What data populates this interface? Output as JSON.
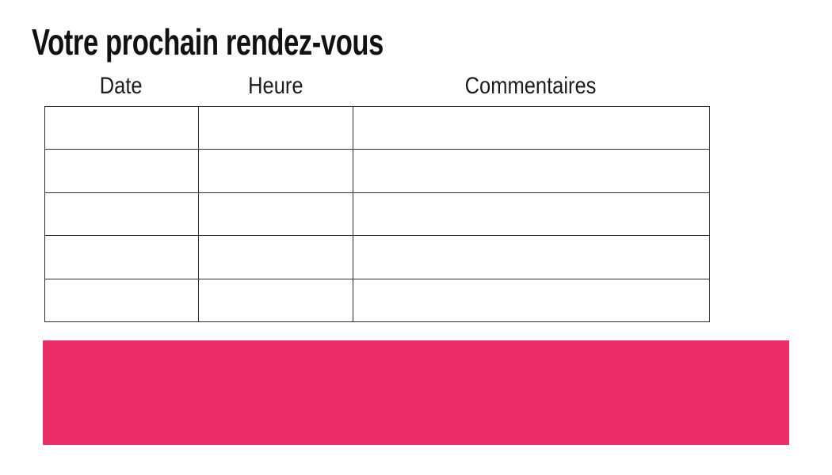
{
  "title": "Votre prochain rendez-vous",
  "table": {
    "columns": [
      "Date",
      "Heure",
      "Commentaires"
    ],
    "rows": [
      [
        "",
        "",
        ""
      ],
      [
        "",
        "",
        ""
      ],
      [
        "",
        "",
        ""
      ],
      [
        "",
        "",
        ""
      ],
      [
        "",
        "",
        ""
      ]
    ]
  },
  "banner": {
    "text": ""
  },
  "colors": {
    "accent_pink": "#ED2D67",
    "table_border": "#2E2E2E",
    "title_text": "#111111",
    "header_text": "#1C1C1C",
    "background": "#FFFFFF"
  }
}
